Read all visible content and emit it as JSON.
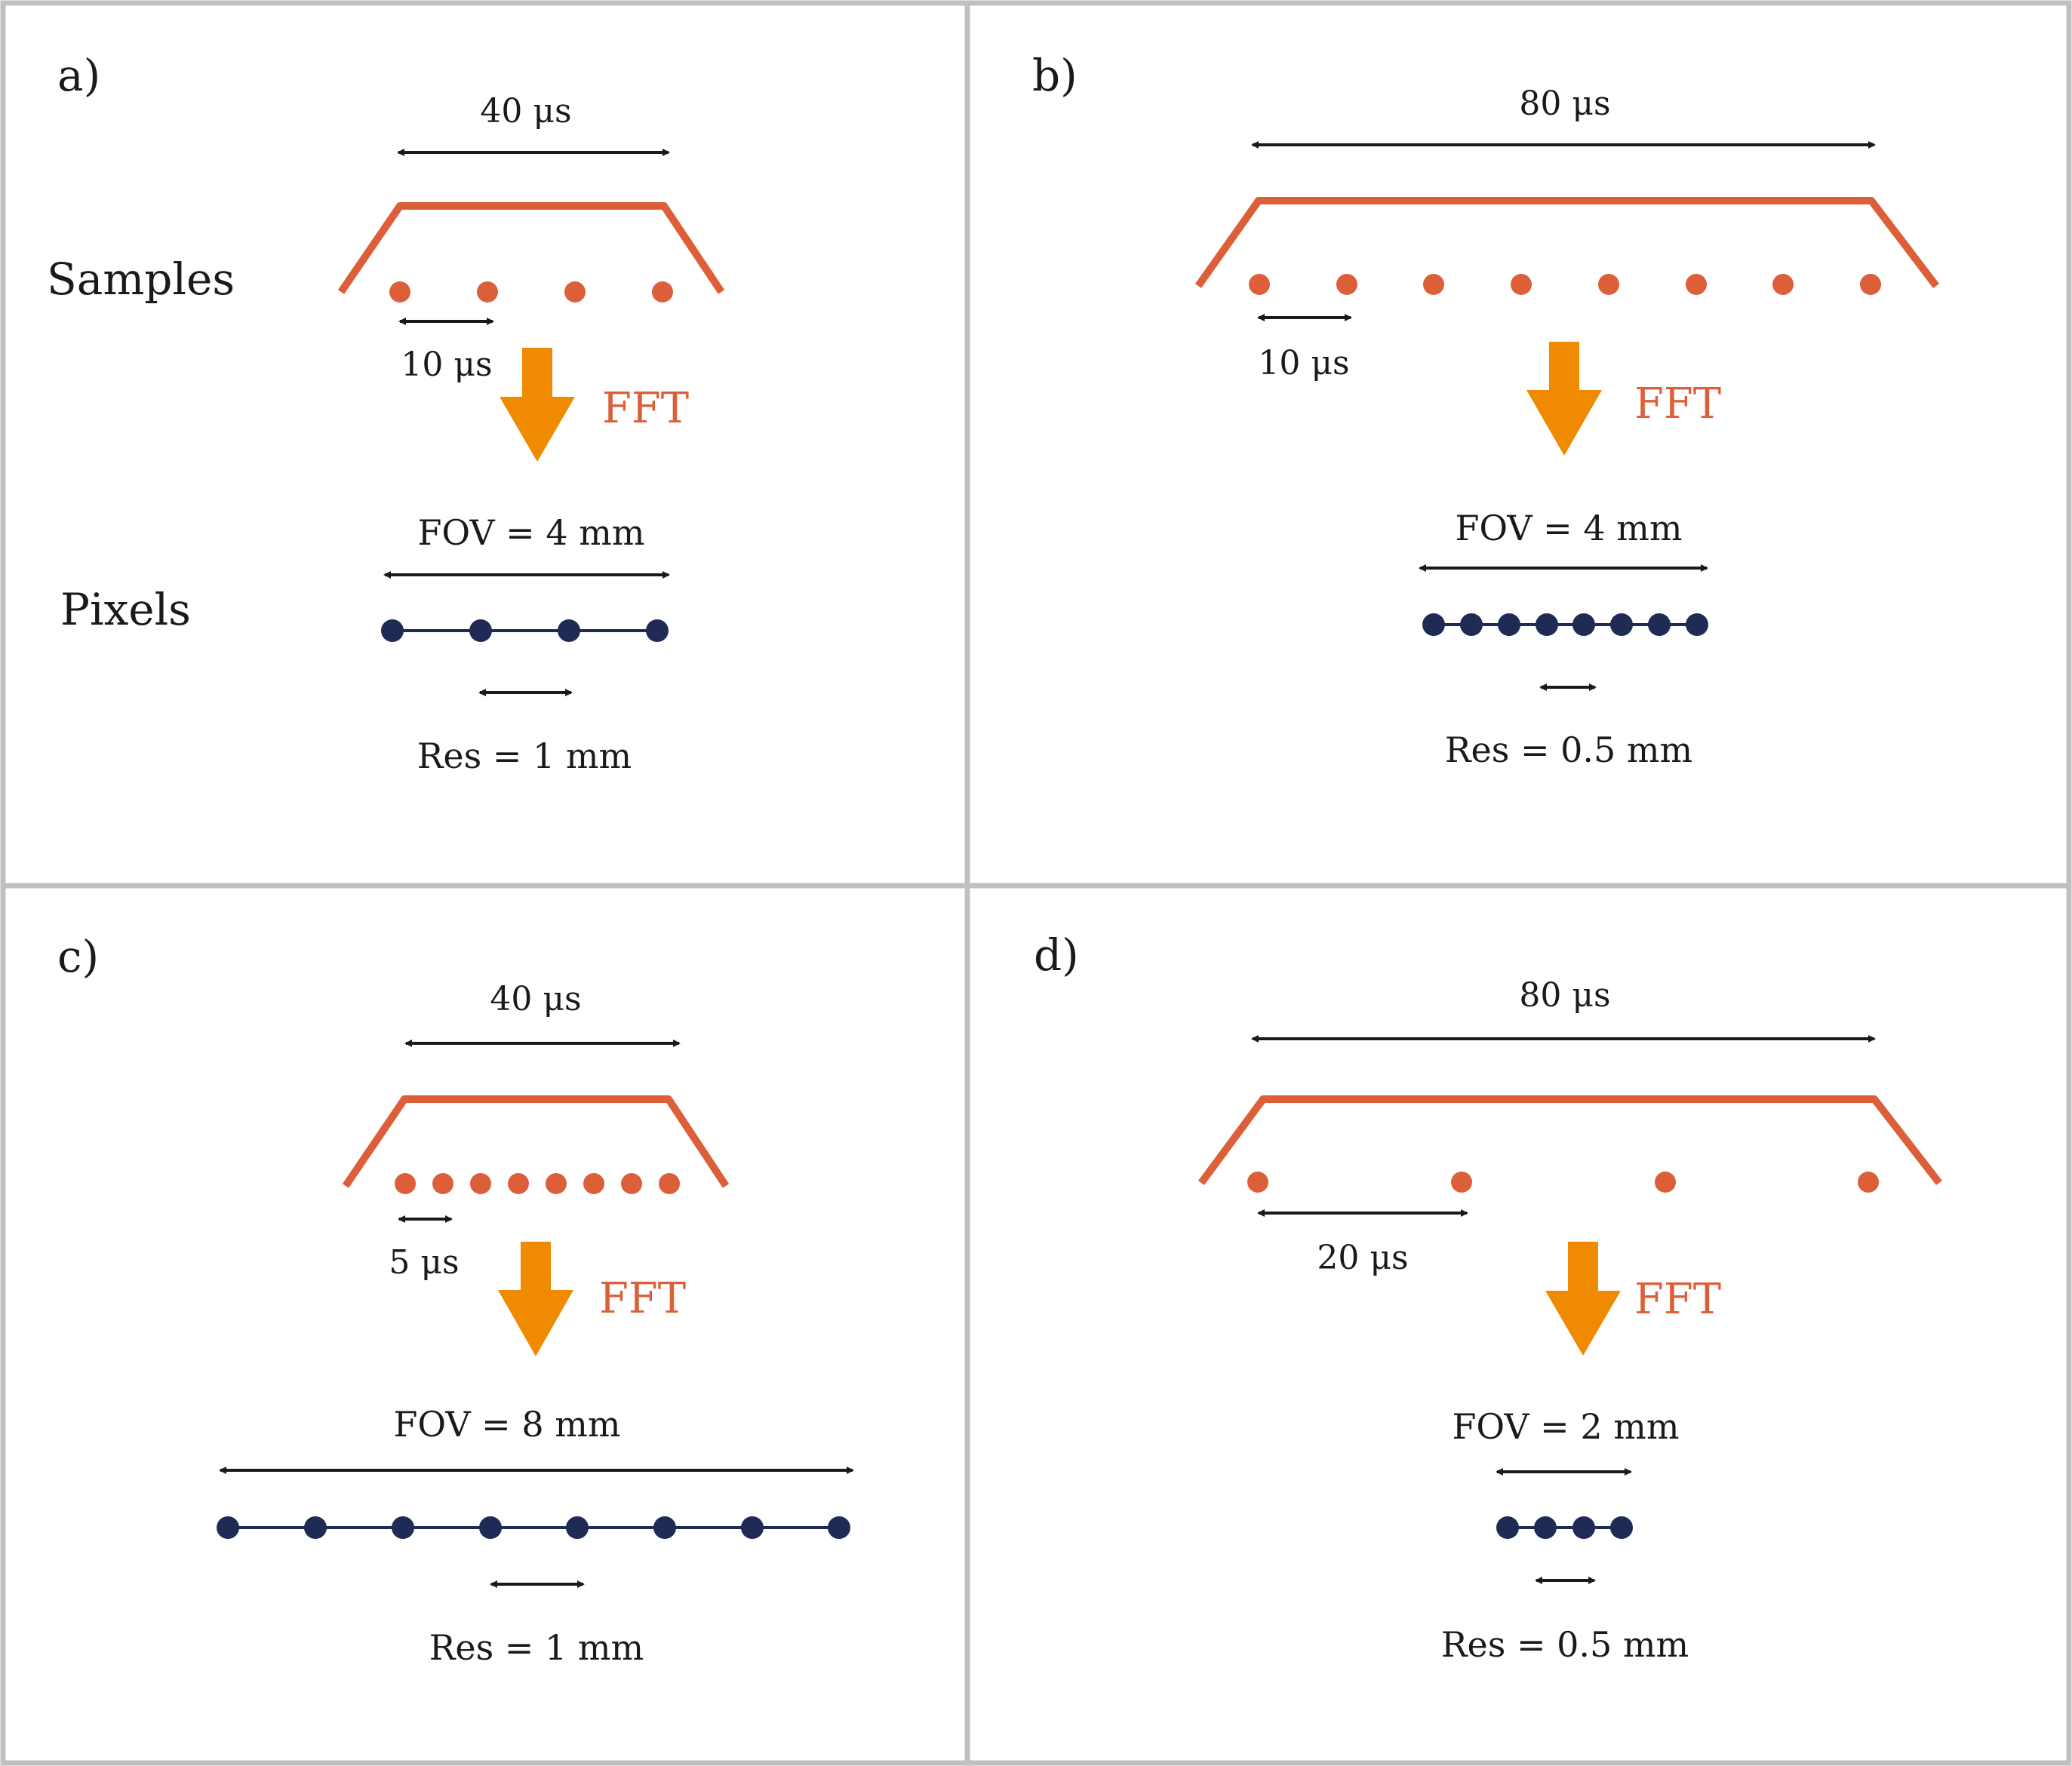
{
  "colors": {
    "border": "#c0c0c0",
    "trace": "#dd5f3a",
    "sample": "#dd5f3a",
    "pixel": "#1f2a55",
    "arrow": "#f08a00",
    "fft_text": "#dd5f3a",
    "measure": "#1a1a1a"
  },
  "row_labels": {
    "samples": "Samples",
    "pixels": "Pixels"
  },
  "panels": [
    {
      "id": "a",
      "label": "a)",
      "readout_duration": "40 μs",
      "sample_count": 4,
      "sample_spacing": "10 μs",
      "fft_label": "FFT",
      "fov": "FOV = 4 mm",
      "pixel_count": 4,
      "resolution": "Res = 1 mm"
    },
    {
      "id": "b",
      "label": "b)",
      "readout_duration": "80 μs",
      "sample_count": 8,
      "sample_spacing": "10 μs",
      "fft_label": "FFT",
      "fov": "FOV = 4 mm",
      "pixel_count": 8,
      "resolution": "Res = 0.5 mm"
    },
    {
      "id": "c",
      "label": "c)",
      "readout_duration": "40 μs",
      "sample_count": 8,
      "sample_spacing": "5 μs",
      "fft_label": "FFT",
      "fov": "FOV = 8 mm",
      "pixel_count": 8,
      "resolution": "Res = 1 mm"
    },
    {
      "id": "d",
      "label": "d)",
      "readout_duration": "80 μs",
      "sample_count": 4,
      "sample_spacing": "20 μs",
      "fft_label": "FFT",
      "fov": "FOV = 2 mm",
      "pixel_count": 4,
      "resolution": "Res = 0.5 mm"
    }
  ]
}
